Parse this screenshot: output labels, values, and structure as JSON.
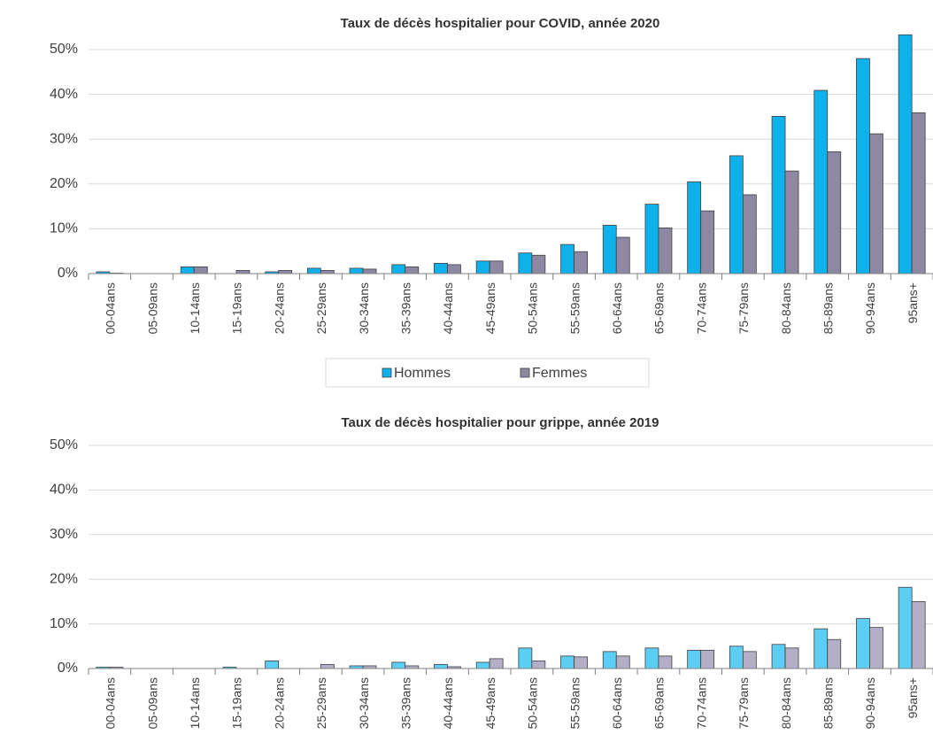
{
  "chart_data": [
    {
      "type": "bar",
      "title": "Taux de décès hospitalier pour COVID, année 2020",
      "categories": [
        "00-04ans",
        "05-09ans",
        "10-14ans",
        "15-19ans",
        "20-24ans",
        "25-29ans",
        "30-34ans",
        "35-39ans",
        "40-44ans",
        "45-49ans",
        "50-54ans",
        "55-59ans",
        "60-64ans",
        "65-69ans",
        "70-74ans",
        "75-79ans",
        "80-84ans",
        "85-89ans",
        "90-94ans",
        "95ans+"
      ],
      "series": [
        {
          "name": "Hommes",
          "color": "#0fb1ea",
          "values": [
            0.4,
            0,
            1.5,
            0,
            0.4,
            1.2,
            1.2,
            2.0,
            2.3,
            2.8,
            4.6,
            6.5,
            10.8,
            15.5,
            20.5,
            26.3,
            35.1,
            40.9,
            48.0,
            53.3
          ]
        },
        {
          "name": "Femmes",
          "color": "#8f88a3",
          "values": [
            0.1,
            0,
            1.5,
            0.7,
            0.7,
            0.7,
            1.0,
            1.5,
            2.0,
            2.8,
            4.1,
            4.9,
            8.1,
            10.2,
            14.0,
            17.6,
            22.9,
            27.2,
            31.2,
            35.9
          ]
        }
      ],
      "ylim": [
        0,
        50
      ],
      "yticks": [
        {
          "value": 0,
          "label": "0%"
        },
        {
          "value": 10,
          "label": "10%"
        },
        {
          "value": 20,
          "label": "20%"
        },
        {
          "value": 30,
          "label": "30%"
        },
        {
          "value": 40,
          "label": "40%"
        },
        {
          "value": 50,
          "label": "50%"
        }
      ],
      "grid": true,
      "legend": "bottom"
    },
    {
      "type": "bar",
      "title": "Taux de décès hospitalier pour grippe, année 2019",
      "categories": [
        "00-04ans",
        "05-09ans",
        "10-14ans",
        "15-19ans",
        "20-24ans",
        "25-29ans",
        "30-34ans",
        "35-39ans",
        "40-44ans",
        "45-49ans",
        "50-54ans",
        "55-59ans",
        "60-64ans",
        "65-69ans",
        "70-74ans",
        "75-79ans",
        "80-84ans",
        "85-89ans",
        "90-94ans",
        "95ans+"
      ],
      "series": [
        {
          "color": "#5ccdf3",
          "values": [
            0.3,
            0,
            0,
            0.3,
            1.7,
            0,
            0.6,
            1.4,
            0.9,
            1.4,
            4.6,
            2.8,
            3.8,
            4.6,
            4.1,
            5.0,
            5.4,
            8.9,
            11.2,
            18.2
          ]
        },
        {
          "color": "#b4aec7",
          "values": [
            0.3,
            0,
            0,
            0,
            0,
            0.9,
            0.6,
            0.6,
            0.4,
            2.2,
            1.7,
            2.6,
            2.8,
            2.8,
            4.1,
            3.8,
            4.6,
            6.5,
            9.2,
            15.0
          ]
        }
      ],
      "ylim": [
        0,
        50
      ],
      "yticks": [
        {
          "value": 0,
          "label": "0%"
        },
        {
          "value": 10,
          "label": "10%"
        },
        {
          "value": 20,
          "label": "20%"
        },
        {
          "value": 30,
          "label": "30%"
        },
        {
          "value": 40,
          "label": "40%"
        },
        {
          "value": 50,
          "label": "50%"
        }
      ],
      "grid": true
    }
  ]
}
